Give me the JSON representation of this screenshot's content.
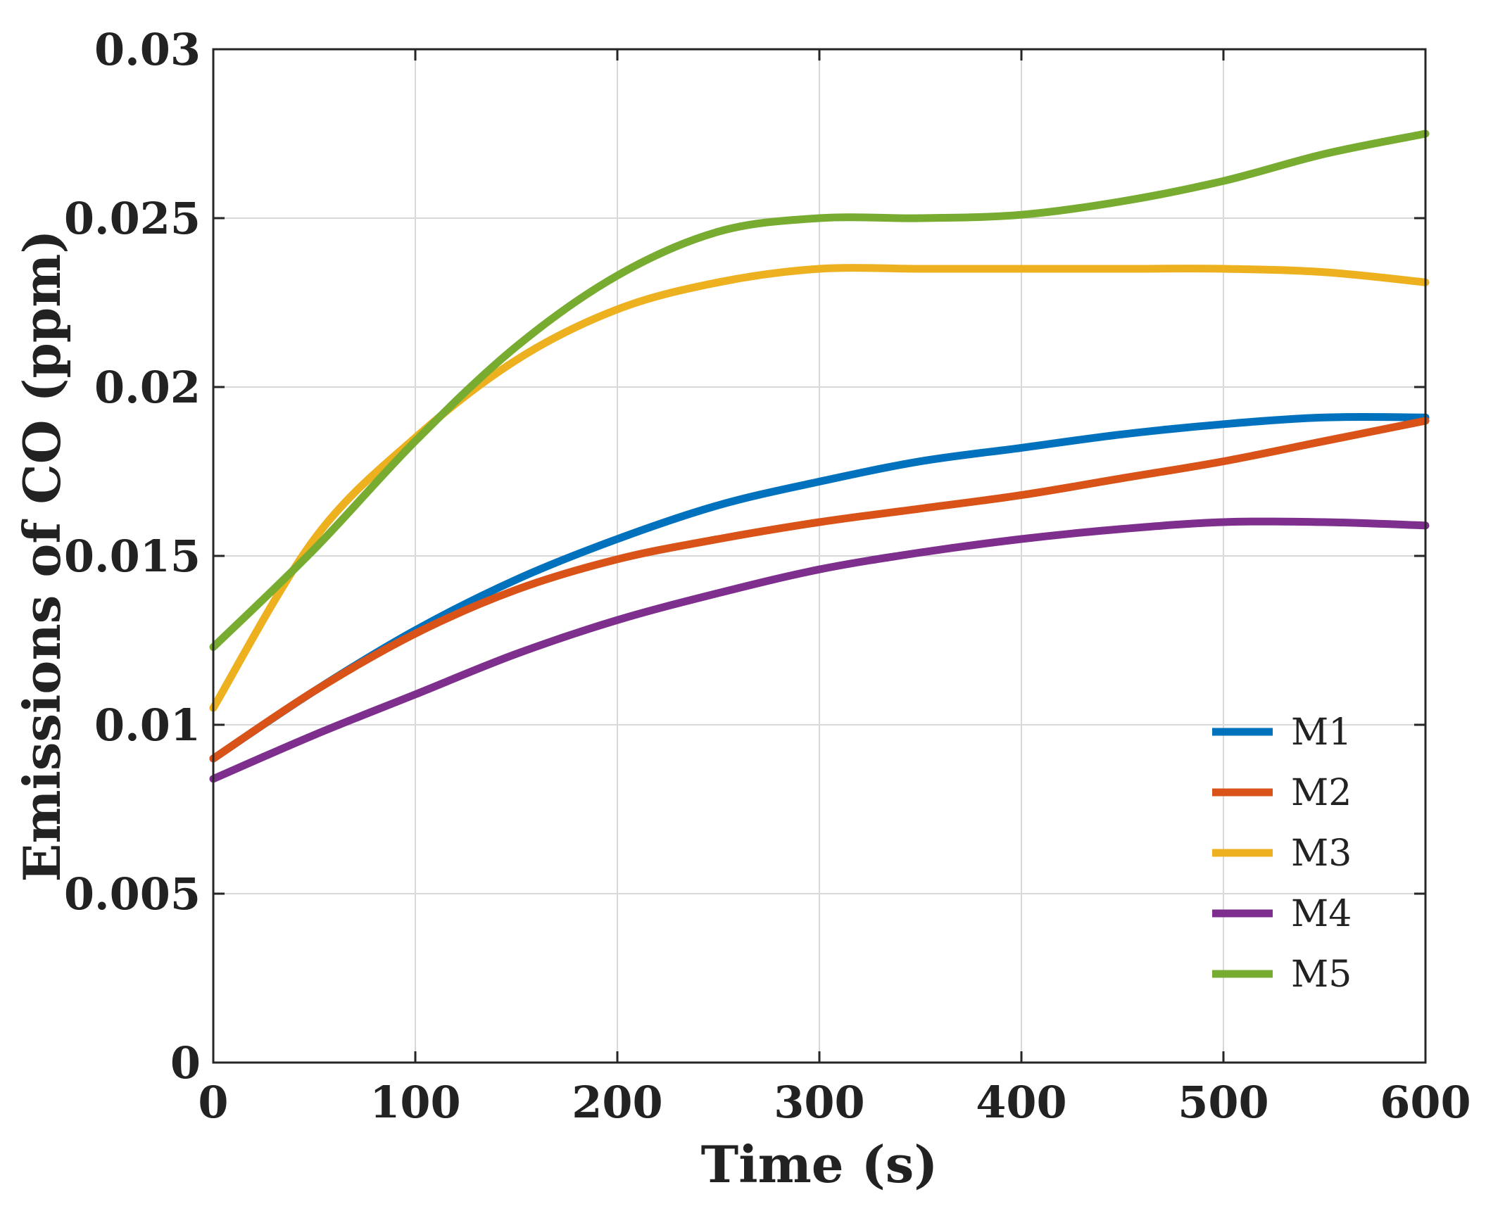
{
  "chart_data": {
    "type": "line",
    "title": "",
    "xlabel": "Time (s)",
    "ylabel": "Emissions of CO (ppm)",
    "xlim": [
      0,
      600
    ],
    "ylim": [
      0,
      0.03
    ],
    "xticks": [
      0,
      100,
      200,
      300,
      400,
      500,
      600
    ],
    "xtick_labels": [
      "0",
      "100",
      "200",
      "300",
      "400",
      "500",
      "600"
    ],
    "yticks": [
      0,
      0.005,
      0.01,
      0.015,
      0.02,
      0.025,
      0.03
    ],
    "ytick_labels": [
      "0",
      "0.005",
      "0.01",
      "0.015",
      "0.02",
      "0.025",
      "0.03"
    ],
    "grid": true,
    "legend_position": "bottom-right",
    "x": [
      0,
      50,
      100,
      150,
      200,
      250,
      300,
      350,
      400,
      450,
      500,
      550,
      600
    ],
    "series": [
      {
        "name": "M1",
        "color": "#0072BD",
        "values": [
          0.009,
          0.011,
          0.0128,
          0.0143,
          0.0155,
          0.0165,
          0.0172,
          0.0178,
          0.0182,
          0.0186,
          0.0189,
          0.0191,
          0.0191
        ]
      },
      {
        "name": "M2",
        "color": "#D95319",
        "values": [
          0.009,
          0.011,
          0.0127,
          0.014,
          0.0149,
          0.0155,
          0.016,
          0.0164,
          0.0168,
          0.0173,
          0.0178,
          0.0184,
          0.019
        ]
      },
      {
        "name": "M3",
        "color": "#EDB120",
        "values": [
          0.0105,
          0.0155,
          0.0185,
          0.0208,
          0.0223,
          0.0231,
          0.0235,
          0.0235,
          0.0235,
          0.0235,
          0.0235,
          0.0234,
          0.0231
        ]
      },
      {
        "name": "M4",
        "color": "#7E2F8E",
        "values": [
          0.0084,
          0.0097,
          0.0109,
          0.0121,
          0.0131,
          0.0139,
          0.0146,
          0.0151,
          0.0155,
          0.0158,
          0.016,
          0.016,
          0.0159
        ]
      },
      {
        "name": "M5",
        "color": "#77AC30",
        "values": [
          0.0123,
          0.0152,
          0.0184,
          0.0212,
          0.0233,
          0.0246,
          0.025,
          0.025,
          0.0251,
          0.0255,
          0.0261,
          0.0269,
          0.0275
        ]
      }
    ]
  }
}
